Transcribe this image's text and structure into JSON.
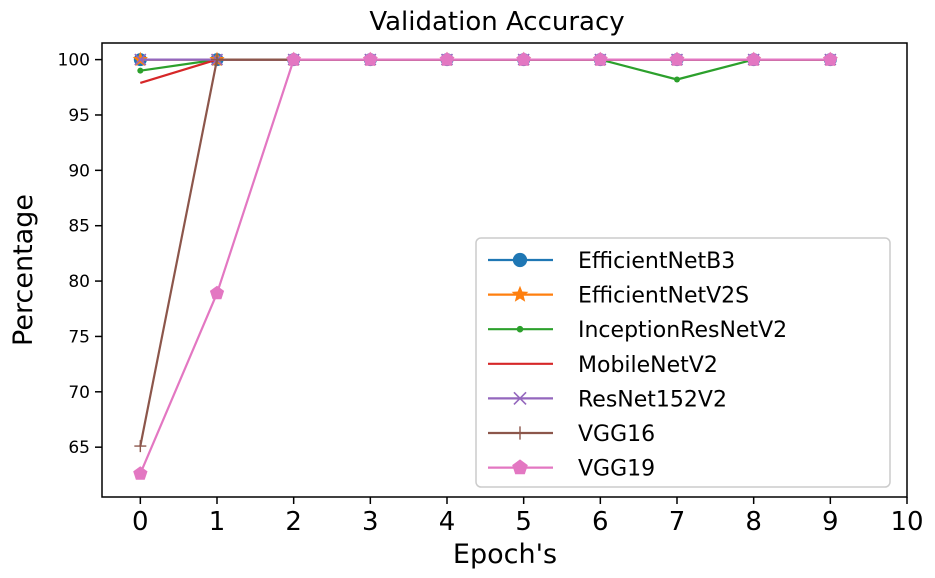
{
  "chart_data": {
    "type": "line",
    "title": "Validation Accuracy",
    "xlabel": "Epoch's",
    "ylabel": "Percentage",
    "xlim": [
      -0.5,
      10
    ],
    "ylim": [
      60.5,
      101.5
    ],
    "xticks": [
      0,
      1,
      2,
      3,
      4,
      5,
      6,
      7,
      8,
      9,
      10
    ],
    "yticks": [
      65,
      70,
      75,
      80,
      85,
      90,
      95,
      100
    ],
    "x": [
      0,
      1,
      2,
      3,
      4,
      5,
      6,
      7,
      8,
      9
    ],
    "legend_position": "lower-right",
    "grid": false,
    "series": [
      {
        "name": "EfficientNetB3",
        "color": "#1f77b4",
        "marker": "circle",
        "values": [
          100,
          100,
          100,
          100,
          100,
          100,
          100,
          100,
          100,
          100
        ]
      },
      {
        "name": "EfficientNetV2S",
        "color": "#ff7f0e",
        "marker": "star",
        "values": [
          100,
          100,
          100,
          100,
          100,
          100,
          100,
          100,
          100,
          100
        ]
      },
      {
        "name": "InceptionResNetV2",
        "color": "#2ca02c",
        "marker": "point",
        "values": [
          99,
          100,
          100,
          100,
          100,
          100,
          100,
          98.2,
          100,
          100
        ]
      },
      {
        "name": "MobileNetV2",
        "color": "#d62728",
        "marker": "none",
        "values": [
          97.9,
          100,
          100,
          100,
          100,
          100,
          100,
          100,
          100,
          100
        ]
      },
      {
        "name": "ResNet152V2",
        "color": "#9467bd",
        "marker": "x",
        "values": [
          100,
          100,
          100,
          100,
          100,
          100,
          100,
          100,
          100,
          100
        ]
      },
      {
        "name": "VGG16",
        "color": "#8c564b",
        "marker": "plus",
        "values": [
          65.1,
          100,
          100,
          100,
          100,
          100,
          100,
          100,
          100,
          100
        ]
      },
      {
        "name": "VGG19",
        "color": "#e377c2",
        "marker": "pentagon",
        "values": [
          62.6,
          78.9,
          100,
          100,
          100,
          100,
          100,
          100,
          100,
          100
        ]
      }
    ]
  }
}
